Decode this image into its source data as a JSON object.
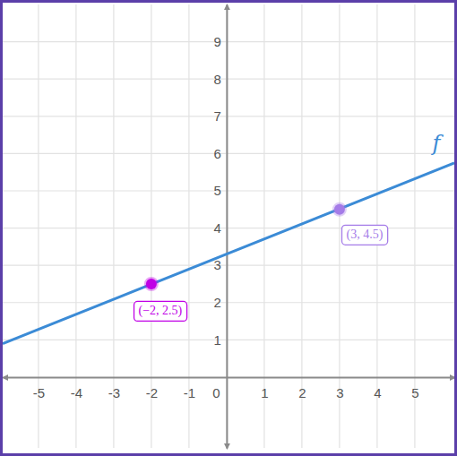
{
  "chart_data": {
    "type": "line",
    "xlim": [
      -5.95,
      6.05
    ],
    "ylim": [
      -1.9,
      10
    ],
    "xticks": [
      -5,
      -4,
      -3,
      -2,
      -1,
      0,
      1,
      2,
      3,
      4,
      5
    ],
    "yticks": [
      1,
      2,
      3,
      4,
      5,
      6,
      7,
      8,
      9
    ],
    "grid": true,
    "series": [
      {
        "name": "f",
        "type": "line",
        "color": "#3b8bd6",
        "line_style": "solid",
        "x": [
          -5.95,
          6.05
        ],
        "values": [
          0.9,
          5.75
        ]
      },
      {
        "type": "scatter",
        "marker": "circle",
        "data_labels": true,
        "colors": [
          "#c000e6",
          "#a57ce8"
        ],
        "x": [
          -2,
          3
        ],
        "values": [
          2.5,
          4.5
        ],
        "value_labels": [
          "(−2, 2.5)",
          "(3, 4.5)"
        ]
      }
    ]
  }
}
